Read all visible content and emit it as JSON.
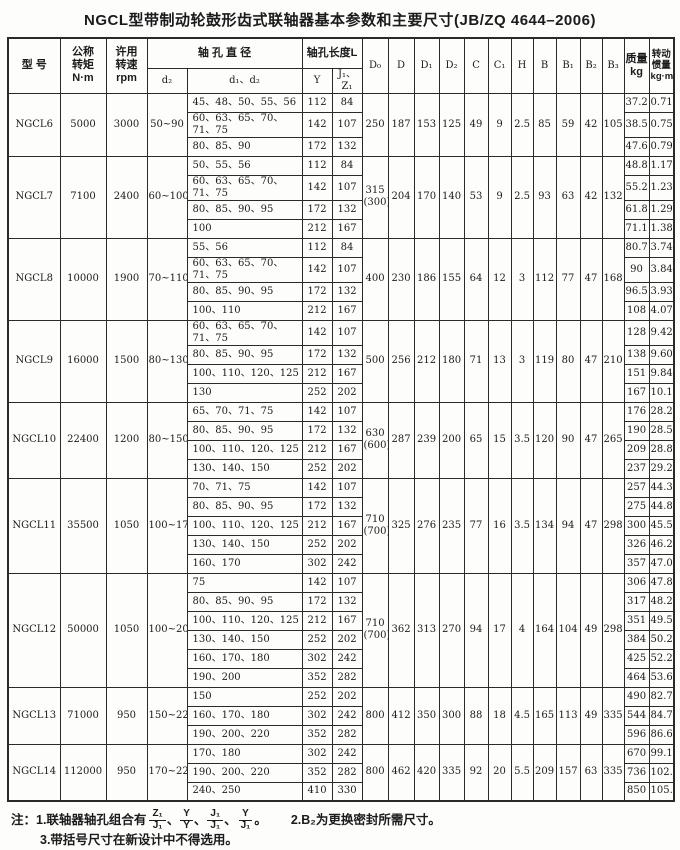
{
  "title": "NGCL型带制动轮鼓形齿式联轴器基本参数和主要尺寸(JB/ZQ 4644–2006)",
  "header": {
    "model": "型  号",
    "torque": "公称\n转矩\nN·m",
    "speed": "许用\n转速\nrpm",
    "bore_diameter_title": "轴  孔  直  径",
    "bore_length_title": "轴孔长度L",
    "d2": "d₂",
    "d1d2": "d₁、d₂",
    "Y": "Y",
    "J1Z1": "J₁、Z₁",
    "dim_cols": [
      "D₀",
      "D",
      "D₁",
      "D₂",
      "C",
      "C₁",
      "H",
      "B",
      "B₁",
      "B₂",
      "B₃"
    ],
    "mass": "质量\nkg",
    "inertia": "转动\n惯量\nkg·m²"
  },
  "rows": [
    {
      "model": "NGCL6",
      "torque": "5000",
      "speed": "3000",
      "d2": "50~90",
      "dims": [
        "250",
        "187",
        "153",
        "125",
        "49",
        "9",
        "2.5",
        "85",
        "59",
        "42",
        "105"
      ],
      "subs": [
        {
          "d": "45、48、50、55、56",
          "Y": "112",
          "JZ": "84",
          "mass": "37.2",
          "inertia": "0.714"
        },
        {
          "d": "60、63、65、70、71、75",
          "Y": "142",
          "JZ": "107",
          "mass": "38.5",
          "inertia": "0.754"
        },
        {
          "d": "80、85、90",
          "Y": "172",
          "JZ": "132",
          "mass": "47.6",
          "inertia": "0.795"
        }
      ]
    },
    {
      "model": "NGCL7",
      "torque": "7100",
      "speed": "2400",
      "d2": "60~100",
      "dims": [
        "315\n(300)",
        "204",
        "170",
        "140",
        "53",
        "9",
        "2.5",
        "93",
        "63",
        "42",
        "132"
      ],
      "subs": [
        {
          "d": "50、55、56",
          "Y": "112",
          "JZ": "84",
          "mass": "48.8",
          "inertia": "1.17"
        },
        {
          "d": "60、63、65、70、71、75",
          "Y": "142",
          "JZ": "107",
          "mass": "55.2",
          "inertia": "1.234"
        },
        {
          "d": "80、85、90、95",
          "Y": "172",
          "JZ": "132",
          "mass": "61.8",
          "inertia": "1.299"
        },
        {
          "d": "100",
          "Y": "212",
          "JZ": "167",
          "mass": "71.1",
          "inertia": "1.388"
        }
      ]
    },
    {
      "model": "NGCL8",
      "torque": "10000",
      "speed": "1900",
      "d2": "70~110",
      "dims": [
        "400",
        "230",
        "186",
        "155",
        "64",
        "12",
        "3",
        "112",
        "77",
        "47",
        "168"
      ],
      "subs": [
        {
          "d": "55、56",
          "Y": "112",
          "JZ": "84",
          "mass": "80.7",
          "inertia": "3.747"
        },
        {
          "d": "60、63、65、70、71、75",
          "Y": "142",
          "JZ": "107",
          "mass": "90",
          "inertia": "3.841"
        },
        {
          "d": "80、85、90、95",
          "Y": "172",
          "JZ": "132",
          "mass": "96.5",
          "inertia": "3.939"
        },
        {
          "d": "100、110",
          "Y": "212",
          "JZ": "167",
          "mass": "108",
          "inertia": "4.072"
        }
      ]
    },
    {
      "model": "NGCL9",
      "torque": "16000",
      "speed": "1500",
      "d2": "80~130",
      "dims": [
        "500",
        "256",
        "212",
        "180",
        "71",
        "13",
        "3",
        "119",
        "80",
        "47",
        "210"
      ],
      "subs": [
        {
          "d": "60、63、65、70、71、75",
          "Y": "142",
          "JZ": "107",
          "mass": "128",
          "inertia": "9.427"
        },
        {
          "d": "80、85、90、95",
          "Y": "172",
          "JZ": "132",
          "mass": "138",
          "inertia": "9.605"
        },
        {
          "d": "100、110、120、125",
          "Y": "212",
          "JZ": "167",
          "mass": "151",
          "inertia": "9.847"
        },
        {
          "d": "130",
          "Y": "252",
          "JZ": "202",
          "mass": "167",
          "inertia": "10.109"
        }
      ]
    },
    {
      "model": "NGCL10",
      "torque": "22400",
      "speed": "1200",
      "d2": "80~150",
      "dims": [
        "630\n(600)",
        "287",
        "239",
        "200",
        "65",
        "15",
        "3.5",
        "120",
        "90",
        "47",
        "265"
      ],
      "subs": [
        {
          "d": "65、70、71、75",
          "Y": "142",
          "JZ": "107",
          "mass": "176",
          "inertia": "28.238"
        },
        {
          "d": "80、85、90、95",
          "Y": "172",
          "JZ": "132",
          "mass": "190",
          "inertia": "28.509"
        },
        {
          "d": "100、110、120、125",
          "Y": "212",
          "JZ": "167",
          "mass": "209",
          "inertia": "28.879"
        },
        {
          "d": "130、140、150",
          "Y": "252",
          "JZ": "202",
          "mass": "237",
          "inertia": "29.248"
        }
      ]
    },
    {
      "model": "NGCL11",
      "torque": "35500",
      "speed": "1050",
      "d2": "100~170",
      "dims": [
        "710\n(700)",
        "325",
        "276",
        "235",
        "77",
        "16",
        "3.5",
        "134",
        "94",
        "47",
        "298"
      ],
      "subs": [
        {
          "d": "70、71、75",
          "Y": "142",
          "JZ": "107",
          "mass": "257",
          "inertia": "44.309"
        },
        {
          "d": "80、85、90、95",
          "Y": "172",
          "JZ": "132",
          "mass": "275",
          "inertia": "44.825"
        },
        {
          "d": "100、110、120、125",
          "Y": "212",
          "JZ": "167",
          "mass": "300",
          "inertia": "45.53"
        },
        {
          "d": "130、140、150",
          "Y": "252",
          "JZ": "202",
          "mass": "326",
          "inertia": "46.235"
        },
        {
          "d": "160、170",
          "Y": "302",
          "JZ": "242",
          "mass": "357",
          "inertia": "47.08"
        }
      ]
    },
    {
      "model": "NGCL12",
      "torque": "50000",
      "speed": "1050",
      "d2": "100~200",
      "dims": [
        "710\n(700)",
        "362",
        "313",
        "270",
        "94",
        "17",
        "4",
        "164",
        "104",
        "49",
        "298"
      ],
      "subs": [
        {
          "d": "75",
          "Y": "142",
          "JZ": "107",
          "mass": "306",
          "inertia": "47.88"
        },
        {
          "d": "80、85、90、95",
          "Y": "172",
          "JZ": "132",
          "mass": "317",
          "inertia": "48.29"
        },
        {
          "d": "100、110、120、125",
          "Y": "212",
          "JZ": "167",
          "mass": "351",
          "inertia": "49.52"
        },
        {
          "d": "130、140、150",
          "Y": "252",
          "JZ": "202",
          "mass": "384",
          "inertia": "50.25"
        },
        {
          "d": "160、170、180",
          "Y": "302",
          "JZ": "242",
          "mass": "425",
          "inertia": "52.22"
        },
        {
          "d": "190、200",
          "Y": "352",
          "JZ": "282",
          "mass": "464",
          "inertia": "53.69"
        }
      ]
    },
    {
      "model": "NGCL13",
      "torque": "71000",
      "speed": "950",
      "d2": "150~220",
      "dims": [
        "800",
        "412",
        "350",
        "300",
        "88",
        "18",
        "4.5",
        "165",
        "113",
        "49",
        "335"
      ],
      "subs": [
        {
          "d": "150",
          "Y": "252",
          "JZ": "202",
          "mass": "490",
          "inertia": "82.7"
        },
        {
          "d": "160、170、180",
          "Y": "302",
          "JZ": "242",
          "mass": "544",
          "inertia": "84.7"
        },
        {
          "d": "190、200、220",
          "Y": "352",
          "JZ": "282",
          "mass": "596",
          "inertia": "86.67"
        }
      ]
    },
    {
      "model": "NGCL14",
      "torque": "112000",
      "speed": "950",
      "d2": "170~220",
      "dims": [
        "800",
        "462",
        "420",
        "335",
        "92",
        "20",
        "5.5",
        "209",
        "157",
        "63",
        "335"
      ],
      "subs": [
        {
          "d": "170、180",
          "Y": "302",
          "JZ": "242",
          "mass": "670",
          "inertia": "99.1"
        },
        {
          "d": "190、200、220",
          "Y": "352",
          "JZ": "282",
          "mass": "736",
          "inertia": "102.2"
        },
        {
          "d": "240、250",
          "Y": "410",
          "JZ": "330",
          "mass": "850",
          "inertia": "105.9"
        }
      ]
    }
  ],
  "notes": {
    "prefix": "注：1.联轴器轴孔组合有",
    "fractions": [
      {
        "top": "Z₁",
        "bot": "J₁"
      },
      {
        "top": "Y",
        "bot": "Y"
      },
      {
        "top": "J₁",
        "bot": "J₁"
      },
      {
        "top": "Y",
        "bot": "J₁"
      }
    ],
    "separator": "、",
    "suffix": "。",
    "note2": "2.B₂为更换密封所需尺寸。",
    "note3": "3.带括号尺寸在新设计中不得选用。"
  }
}
